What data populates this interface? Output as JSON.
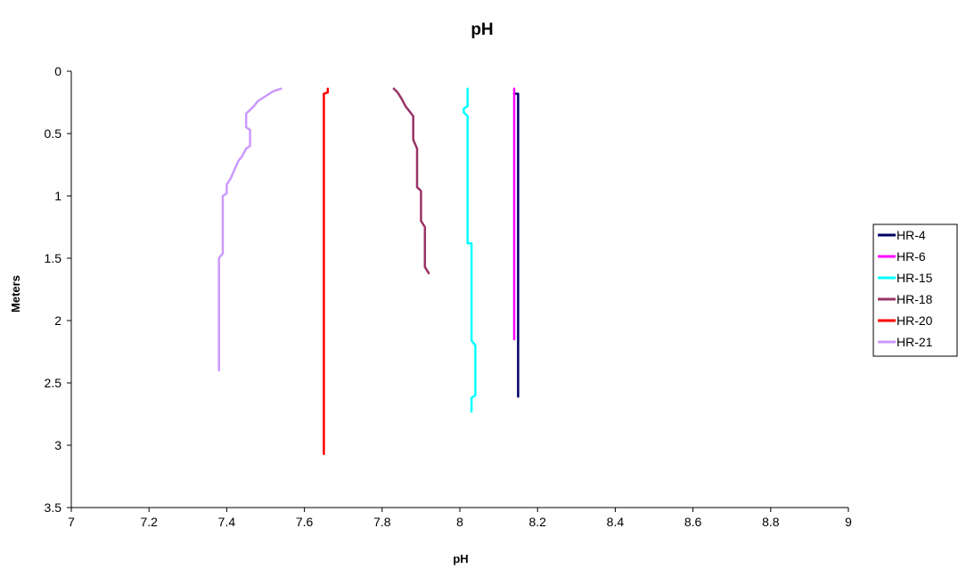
{
  "chart_data": {
    "type": "line",
    "title": "pH",
    "xlabel": "pH",
    "ylabel": "Meters",
    "xlim": [
      7,
      9
    ],
    "ylim": [
      0,
      3.5
    ],
    "y_inverted": true,
    "x_ticks": [
      "7",
      "7.2",
      "7.4",
      "7.6",
      "7.8",
      "8",
      "8.2",
      "8.4",
      "8.6",
      "8.8",
      "9"
    ],
    "y_ticks": [
      "0",
      "0.5",
      "1",
      "1.5",
      "2",
      "2.5",
      "3",
      "3.5"
    ],
    "grid": false,
    "legend_position": "right",
    "series": [
      {
        "name": "HR-4",
        "color": "#000066",
        "points": [
          [
            8.14,
            0.18
          ],
          [
            8.15,
            0.18
          ],
          [
            8.15,
            0.5
          ],
          [
            8.15,
            1.0
          ],
          [
            8.15,
            1.5
          ],
          [
            8.15,
            2.0
          ],
          [
            8.15,
            2.61
          ]
        ]
      },
      {
        "name": "HR-6",
        "color": "#ff00ff",
        "points": [
          [
            8.14,
            0.14
          ],
          [
            8.14,
            0.5
          ],
          [
            8.14,
            1.0
          ],
          [
            8.14,
            1.5
          ],
          [
            8.14,
            2.15
          ]
        ]
      },
      {
        "name": "HR-15",
        "color": "#00ffff",
        "points": [
          [
            8.02,
            0.14
          ],
          [
            8.02,
            0.28
          ],
          [
            8.01,
            0.3
          ],
          [
            8.01,
            0.33
          ],
          [
            8.02,
            0.36
          ],
          [
            8.02,
            1.25
          ],
          [
            8.02,
            1.38
          ],
          [
            8.03,
            1.38
          ],
          [
            8.03,
            2.16
          ],
          [
            8.04,
            2.2
          ],
          [
            8.04,
            2.6
          ],
          [
            8.03,
            2.62
          ],
          [
            8.03,
            2.73
          ]
        ]
      },
      {
        "name": "HR-18",
        "color": "#993366",
        "points": [
          [
            7.83,
            0.14
          ],
          [
            7.84,
            0.17
          ],
          [
            7.85,
            0.22
          ],
          [
            7.86,
            0.28
          ],
          [
            7.87,
            0.32
          ],
          [
            7.88,
            0.36
          ],
          [
            7.88,
            0.55
          ],
          [
            7.89,
            0.62
          ],
          [
            7.89,
            0.93
          ],
          [
            7.9,
            0.96
          ],
          [
            7.9,
            1.16
          ],
          [
            7.9,
            1.2
          ],
          [
            7.91,
            1.25
          ],
          [
            7.91,
            1.57
          ],
          [
            7.92,
            1.62
          ]
        ]
      },
      {
        "name": "HR-20",
        "color": "#ff0000",
        "points": [
          [
            7.66,
            0.14
          ],
          [
            7.66,
            0.17
          ],
          [
            7.65,
            0.18
          ],
          [
            7.65,
            0.5
          ],
          [
            7.65,
            1.0
          ],
          [
            7.65,
            1.5
          ],
          [
            7.65,
            2.0
          ],
          [
            7.65,
            2.5
          ],
          [
            7.65,
            3.07
          ]
        ]
      },
      {
        "name": "HR-21",
        "color": "#cc99ff",
        "points": [
          [
            7.54,
            0.14
          ],
          [
            7.52,
            0.16
          ],
          [
            7.5,
            0.2
          ],
          [
            7.48,
            0.24
          ],
          [
            7.47,
            0.28
          ],
          [
            7.45,
            0.34
          ],
          [
            7.45,
            0.45
          ],
          [
            7.46,
            0.47
          ],
          [
            7.46,
            0.6
          ],
          [
            7.45,
            0.62
          ],
          [
            7.44,
            0.68
          ],
          [
            7.43,
            0.72
          ],
          [
            7.42,
            0.79
          ],
          [
            7.41,
            0.86
          ],
          [
            7.4,
            0.91
          ],
          [
            7.4,
            0.98
          ],
          [
            7.39,
            1.0
          ],
          [
            7.39,
            1.46
          ],
          [
            7.38,
            1.5
          ],
          [
            7.38,
            2.4
          ]
        ]
      }
    ]
  }
}
